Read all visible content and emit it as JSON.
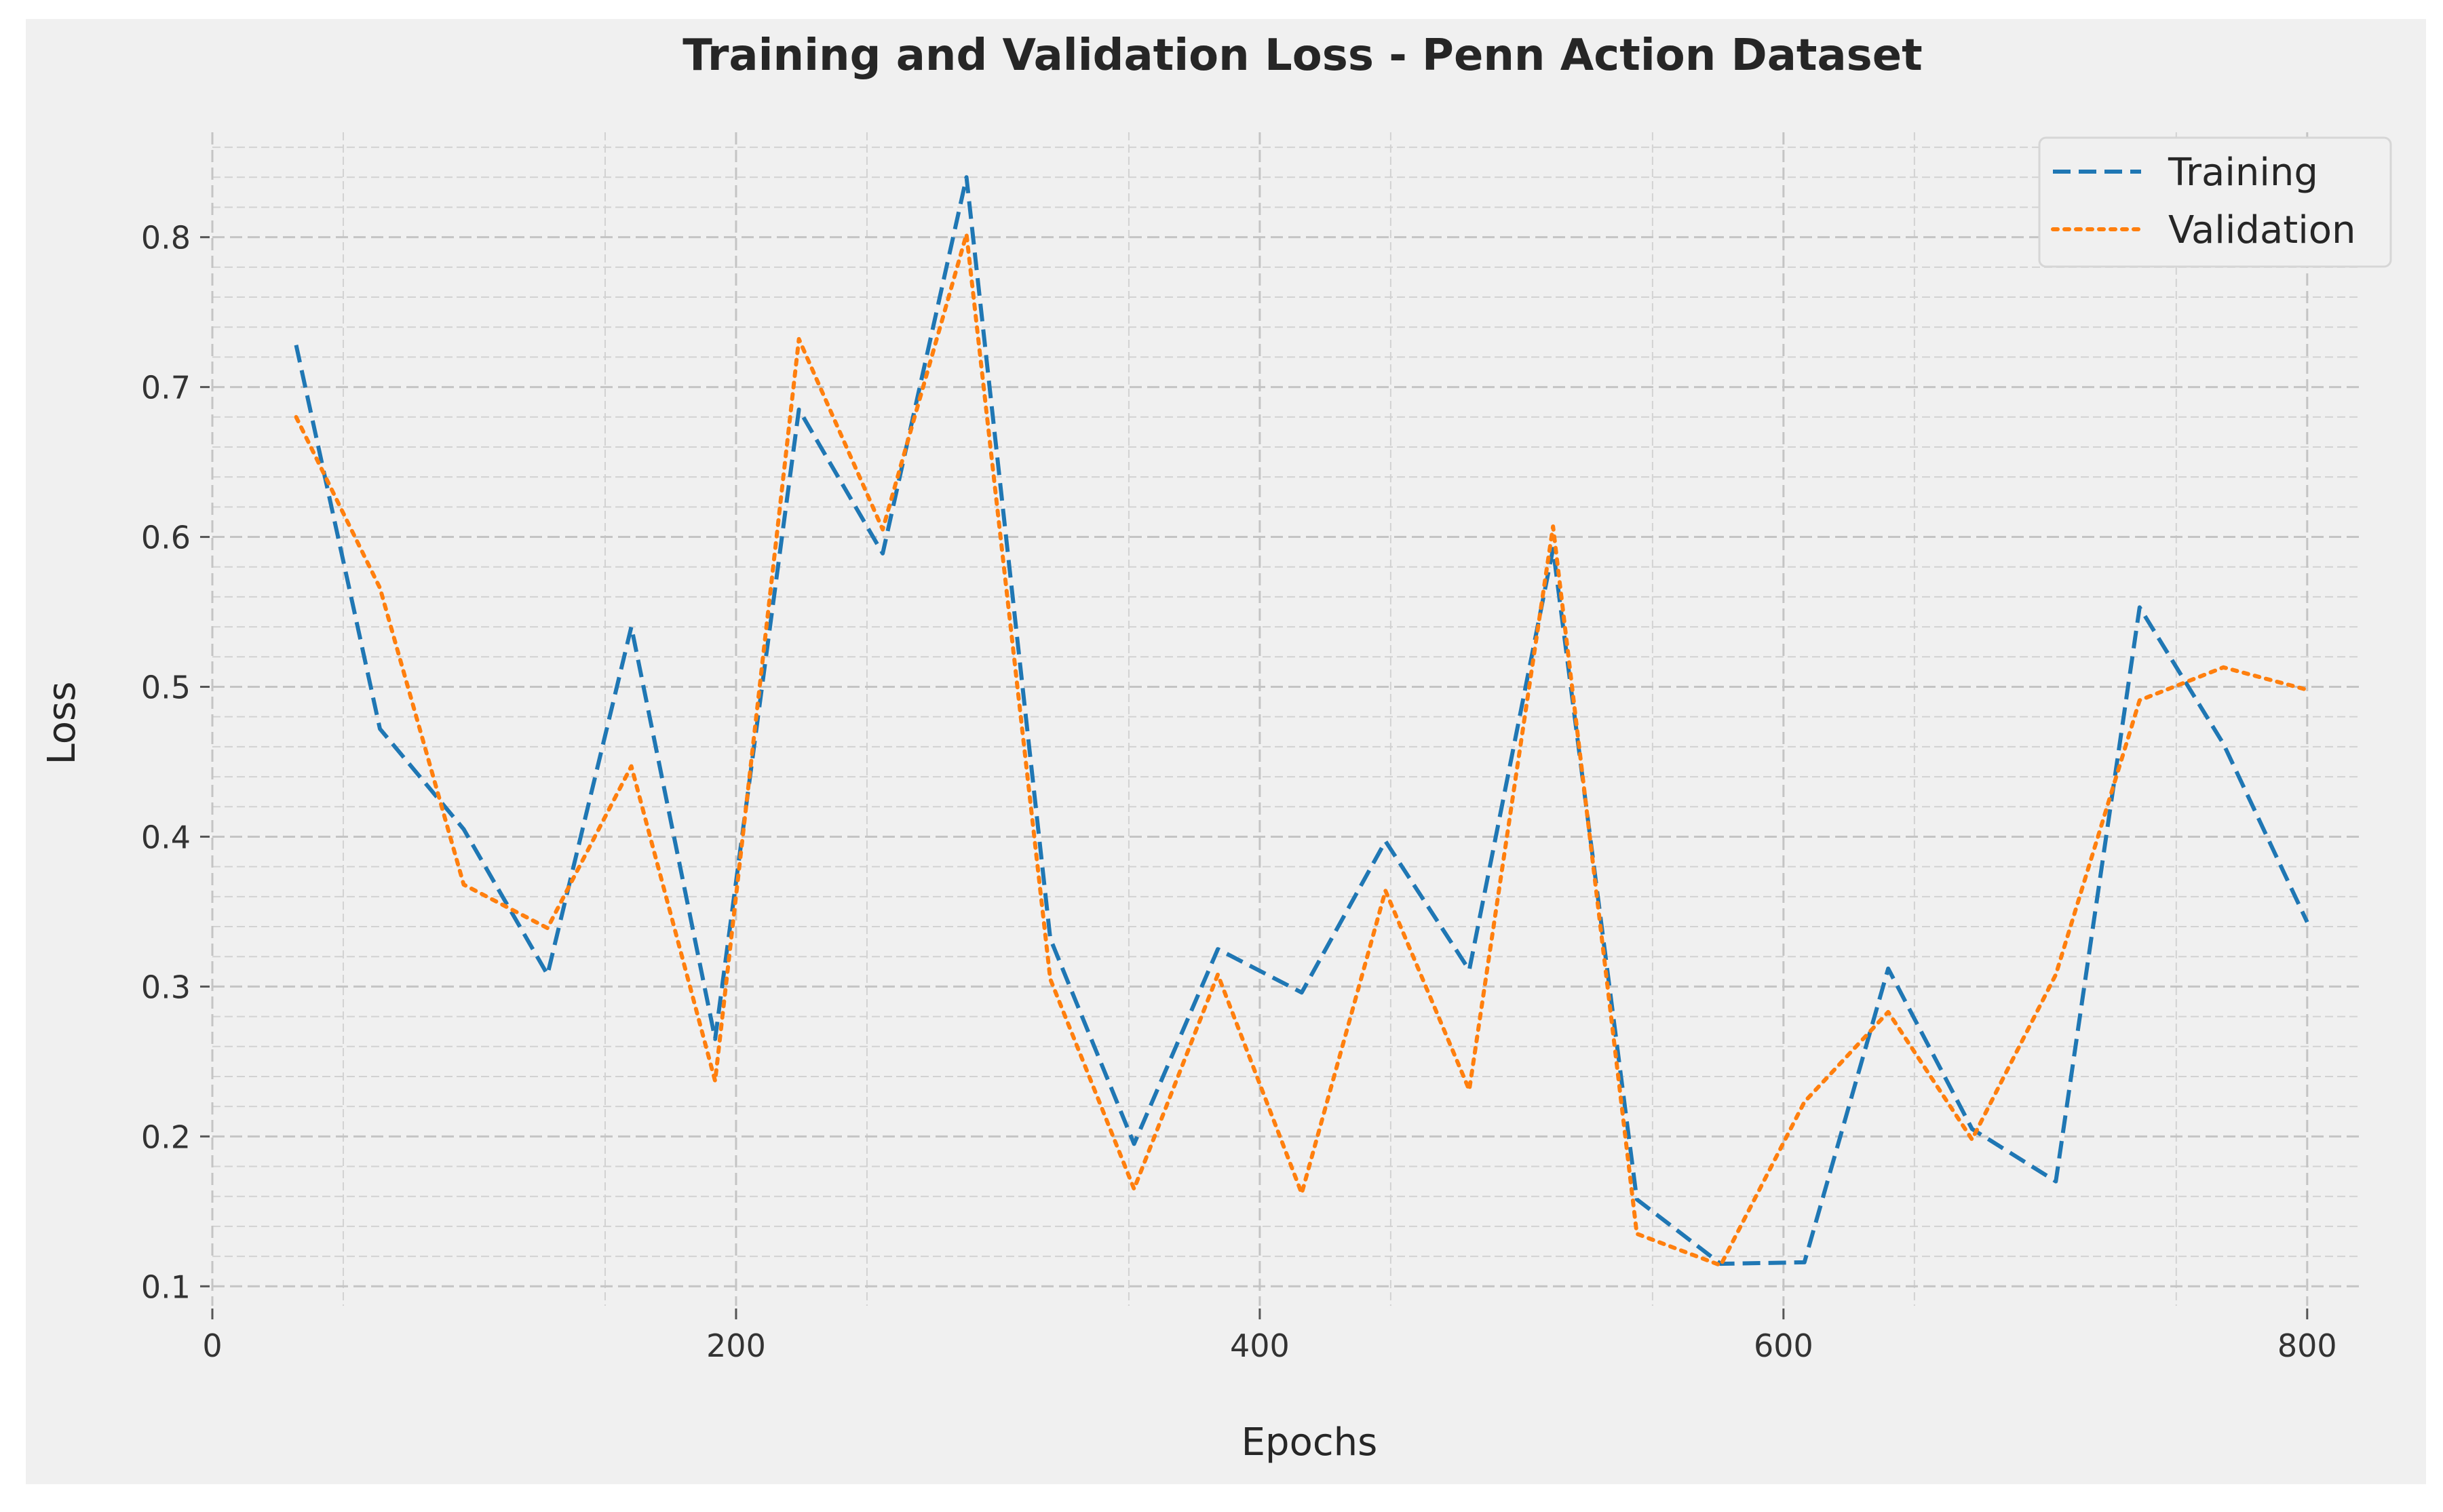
{
  "chart_data": {
    "type": "line",
    "title": "Training and Validation Loss - Penn Action Dataset",
    "xlabel": "Epochs",
    "ylabel": "Loss",
    "xlim": [
      0,
      820
    ],
    "ylim": [
      0.087,
      0.87
    ],
    "x_ticks": [
      0,
      200,
      400,
      600,
      800
    ],
    "y_ticks": [
      0.1,
      0.2,
      0.3,
      0.4,
      0.5,
      0.6,
      0.7,
      0.8
    ],
    "x_tick_labels": [
      "0",
      "200",
      "400",
      "600",
      "800"
    ],
    "y_tick_labels": [
      "0.1",
      "0.2",
      "0.3",
      "0.4",
      "0.5",
      "0.6",
      "0.7",
      "0.8"
    ],
    "grid": true,
    "legend_position": "top-right",
    "x": [
      32,
      64,
      96,
      128,
      160,
      192,
      224,
      256,
      288,
      320,
      352,
      384,
      416,
      448,
      480,
      512,
      544,
      576,
      608,
      640,
      672,
      704,
      736,
      768,
      800
    ],
    "series": [
      {
        "name": "Training",
        "color": "#1f77b4",
        "style": "dashed",
        "values": [
          0.728,
          0.472,
          0.405,
          0.308,
          0.54,
          0.265,
          0.685,
          0.589,
          0.84,
          0.332,
          0.195,
          0.325,
          0.296,
          0.397,
          0.311,
          0.592,
          0.158,
          0.115,
          0.116,
          0.312,
          0.205,
          0.17,
          0.553,
          0.462,
          0.343
        ]
      },
      {
        "name": "Validation",
        "color": "#ff7f0e",
        "style": "dotted",
        "values": [
          0.68,
          0.566,
          0.368,
          0.339,
          0.447,
          0.237,
          0.732,
          0.605,
          0.802,
          0.305,
          0.165,
          0.308,
          0.162,
          0.364,
          0.231,
          0.607,
          0.135,
          0.114,
          0.223,
          0.283,
          0.198,
          0.308,
          0.491,
          0.513,
          0.498
        ]
      }
    ]
  }
}
